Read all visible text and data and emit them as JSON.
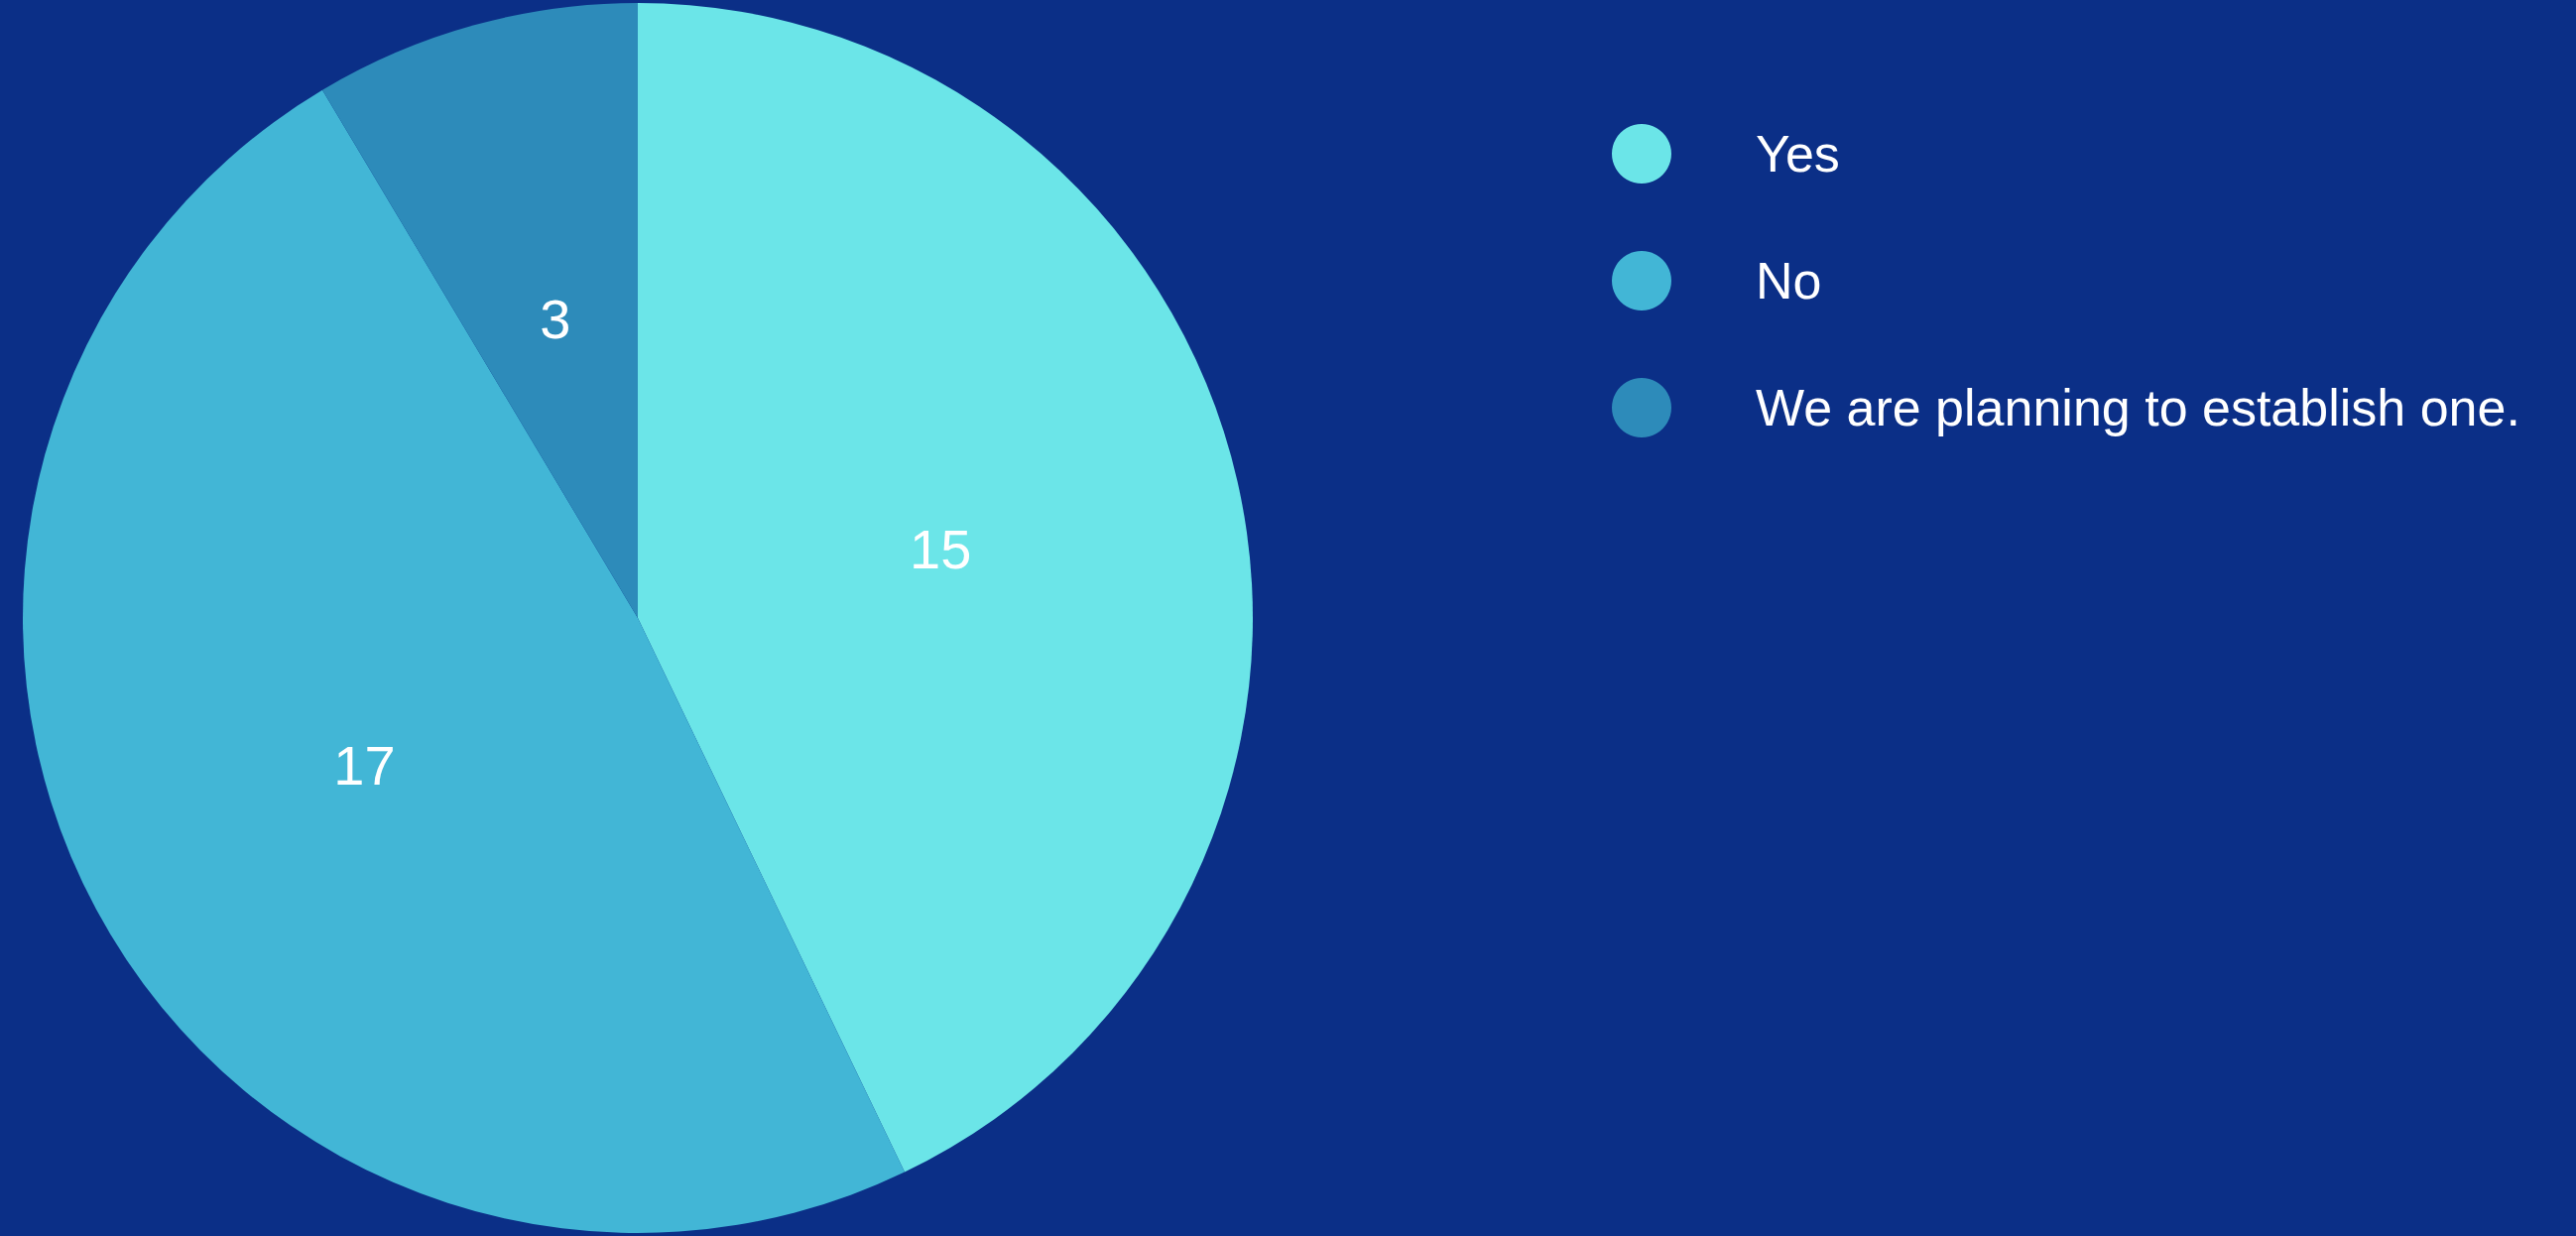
{
  "chart_data": {
    "type": "pie",
    "categories": [
      "Yes",
      "No",
      "We are planning to establish one."
    ],
    "values": [
      15,
      17,
      3
    ],
    "colors": [
      "#6be5e8",
      "#42b6d6",
      "#2d8bba"
    ],
    "data_labels": true,
    "legend": "top right"
  }
}
